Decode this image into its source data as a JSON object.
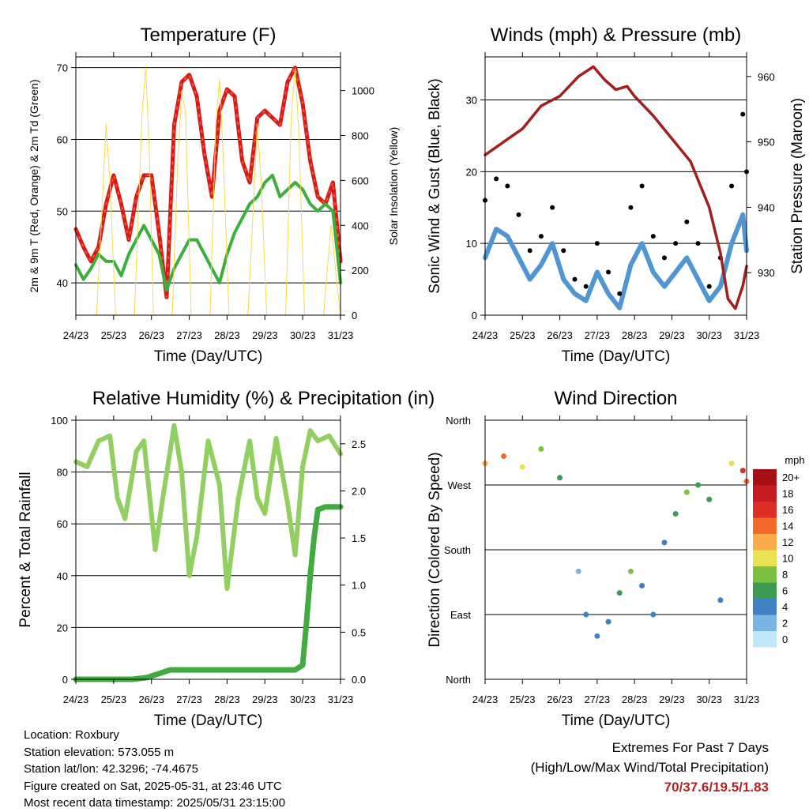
{
  "colors": {
    "temp_2m": "#d7191c",
    "temp_9m": "#f46d23",
    "dewpoint": "#3cae3c",
    "solar": "#fbd84f",
    "wind": "#4f96d2",
    "gust": "#000000",
    "pressure": "#a21f1f",
    "rh": "#91cf60",
    "precip": "#41ab41",
    "extremes": "#b22222"
  },
  "x_ticks": [
    "24/23",
    "25/23",
    "26/23",
    "27/23",
    "28/23",
    "29/23",
    "30/23",
    "31/23"
  ],
  "chart_data": [
    {
      "id": "temperature",
      "type": "line",
      "title": "Temperature (F)",
      "xlabel": "Time (Day/UTC)",
      "ylabel": "2m & 9m T (Red, Orange) & 2m Td (Green)",
      "ylabel_right": "Solar Insolation (Yellow)",
      "ylim": [
        35.5,
        71.5
      ],
      "yticks": [
        40,
        50,
        60,
        70
      ],
      "ylim_right": [
        0,
        1150
      ],
      "yticks_right": [
        0,
        200,
        400,
        600,
        800,
        1000
      ],
      "grid": true,
      "series": [
        {
          "key": "temp",
          "x": [
            0,
            0.2,
            0.4,
            0.6,
            0.8,
            1.0,
            1.2,
            1.4,
            1.6,
            1.8,
            2.0,
            2.2,
            2.4,
            2.6,
            2.8,
            3.0,
            3.2,
            3.4,
            3.6,
            3.8,
            4.0,
            4.2,
            4.4,
            4.6,
            4.8,
            5.0,
            5.2,
            5.4,
            5.6,
            5.8,
            6.0,
            6.2,
            6.4,
            6.6,
            6.8,
            7.0
          ],
          "values": [
            47.5,
            45,
            43,
            45,
            51,
            55,
            51,
            46,
            52,
            55,
            55,
            47,
            38,
            62,
            68,
            69,
            66,
            58,
            52,
            64,
            67,
            66,
            57,
            54,
            63,
            64,
            63,
            62,
            68,
            70,
            65,
            57,
            52,
            51,
            54,
            43
          ]
        },
        {
          "key": "dewpoint",
          "x": [
            0,
            0.2,
            0.4,
            0.6,
            0.8,
            1.0,
            1.2,
            1.4,
            1.6,
            1.8,
            2.0,
            2.2,
            2.4,
            2.6,
            2.8,
            3.0,
            3.2,
            3.4,
            3.6,
            3.8,
            4.0,
            4.2,
            4.4,
            4.6,
            4.8,
            5.0,
            5.2,
            5.4,
            5.6,
            5.8,
            6.0,
            6.2,
            6.4,
            6.6,
            6.8,
            7.0
          ],
          "values": [
            42.5,
            40.5,
            42,
            44,
            43,
            43,
            41,
            44,
            46,
            48,
            46,
            44,
            39,
            42,
            44,
            46,
            46,
            44,
            42,
            40,
            44,
            47,
            49,
            51,
            52,
            54,
            55,
            52,
            53,
            54,
            53,
            51,
            50,
            51,
            50,
            40
          ]
        },
        {
          "key": "solar",
          "x": [
            0,
            0.55,
            0.7,
            0.8,
            0.9,
            1.05,
            1.55,
            1.75,
            1.85,
            1.95,
            2.05,
            2.55,
            2.7,
            2.8,
            2.9,
            3.05,
            3.55,
            3.7,
            3.8,
            3.9,
            4.05,
            4.55,
            4.7,
            4.8,
            4.9,
            5.05,
            5.55,
            5.7,
            5.8,
            5.9,
            6.05,
            6.55,
            6.75,
            6.9,
            7.0
          ],
          "values": [
            0,
            0,
            500,
            850,
            600,
            0,
            0,
            900,
            1100,
            700,
            0,
            0,
            700,
            1000,
            900,
            0,
            0,
            850,
            1050,
            700,
            0,
            0,
            500,
            850,
            600,
            0,
            0,
            900,
            1100,
            800,
            0,
            0,
            400,
            150,
            0
          ]
        }
      ]
    },
    {
      "id": "winds",
      "type": "line",
      "title": "Winds (mph) & Pressure (mb)",
      "xlabel": "Time (Day/UTC)",
      "ylabel": "Sonic Wind & Gust (Blue, Black)",
      "ylabel_right": "Station Pressure (Maroon)",
      "ylim": [
        0,
        36
      ],
      "yticks": [
        0,
        10,
        20,
        30
      ],
      "ylim_right": [
        923.5,
        963
      ],
      "yticks_right": [
        930,
        940,
        950,
        960
      ],
      "grid": true,
      "series": [
        {
          "key": "wind",
          "x": [
            0,
            0.3,
            0.6,
            0.9,
            1.2,
            1.5,
            1.8,
            2.1,
            2.4,
            2.7,
            3.0,
            3.3,
            3.6,
            3.9,
            4.2,
            4.5,
            4.8,
            5.1,
            5.4,
            5.7,
            6.0,
            6.3,
            6.6,
            6.9,
            7.0
          ],
          "values": [
            8,
            12,
            11,
            8,
            5,
            7,
            10,
            5,
            3,
            2,
            6,
            3,
            1,
            7,
            10,
            6,
            4,
            6,
            8,
            5,
            2,
            4,
            10,
            14,
            9
          ]
        },
        {
          "key": "gust",
          "x": [
            0,
            0.3,
            0.6,
            0.9,
            1.2,
            1.5,
            1.8,
            2.1,
            2.4,
            2.7,
            3.0,
            3.3,
            3.6,
            3.9,
            4.2,
            4.5,
            4.8,
            5.1,
            5.4,
            5.7,
            6.0,
            6.3,
            6.6,
            6.9,
            7.0
          ],
          "values": [
            16,
            19,
            18,
            14,
            9,
            11,
            15,
            9,
            5,
            4,
            10,
            6,
            3,
            15,
            18,
            11,
            8,
            10,
            13,
            10,
            4,
            8,
            18,
            28,
            20
          ]
        },
        {
          "key": "pressure",
          "x": [
            0,
            0.5,
            1.0,
            1.5,
            2.0,
            2.5,
            2.9,
            3.2,
            3.5,
            3.8,
            4.0,
            4.5,
            5.0,
            5.5,
            6.0,
            6.3,
            6.5,
            6.7,
            6.9,
            7.0
          ],
          "values": [
            948,
            950,
            952,
            955.5,
            957,
            960,
            961.5,
            959.5,
            958,
            958.5,
            957,
            954,
            950.5,
            947,
            940,
            933,
            926,
            924.5,
            928,
            931
          ]
        }
      ]
    },
    {
      "id": "humidity",
      "type": "line",
      "title": "Relative Humidity (%) & Precipitation (in)",
      "xlabel": "Time (Day/UTC)",
      "ylabel": "Percent & Total Rainfall",
      "ylim": [
        0,
        100
      ],
      "yticks": [
        0,
        20,
        40,
        60,
        80,
        100
      ],
      "ylim_right": [
        0,
        2.75
      ],
      "yticks_right": [
        0.0,
        0.5,
        1.0,
        1.5,
        2.0,
        2.5
      ],
      "grid": true,
      "series": [
        {
          "key": "rh",
          "x": [
            0,
            0.3,
            0.6,
            0.9,
            1.1,
            1.3,
            1.6,
            1.8,
            2.1,
            2.3,
            2.6,
            2.8,
            3.0,
            3.2,
            3.5,
            3.8,
            4.0,
            4.3,
            4.6,
            4.8,
            5.0,
            5.3,
            5.6,
            5.8,
            6.0,
            6.2,
            6.4,
            6.7,
            7.0
          ],
          "values": [
            84,
            82,
            92,
            94,
            70,
            62,
            88,
            92,
            50,
            70,
            98,
            80,
            40,
            55,
            92,
            75,
            35,
            70,
            92,
            70,
            64,
            93,
            68,
            48,
            82,
            96,
            92,
            94,
            87
          ]
        },
        {
          "key": "precip",
          "x": [
            0,
            1.5,
            1.9,
            2.5,
            4.0,
            5.0,
            5.8,
            6.0,
            6.1,
            6.2,
            6.3,
            6.4,
            6.6,
            7.0
          ],
          "values": [
            0,
            0,
            0.02,
            0.1,
            0.1,
            0.1,
            0.1,
            0.15,
            0.6,
            1.1,
            1.5,
            1.8,
            1.83,
            1.83
          ]
        }
      ]
    },
    {
      "id": "direction",
      "type": "scatter",
      "title": "Wind Direction",
      "xlabel": "Time (Day/UTC)",
      "ylabel": "Direction (Colored By Speed)",
      "yticks": [
        "North",
        "East",
        "South",
        "West",
        "North"
      ],
      "ylim": [
        0,
        360
      ],
      "legend_title": "mph",
      "legend_labels": [
        "20+",
        "18",
        "16",
        "14",
        "12",
        "10",
        "8",
        "6",
        "4",
        "2",
        "0"
      ],
      "legend_colors": [
        "#a50f15",
        "#c61d22",
        "#de2d26",
        "#f16a2c",
        "#fbab4a",
        "#e9e252",
        "#7cc142",
        "#3d9a52",
        "#3f81c2",
        "#79b4e3",
        "#c1e6fa"
      ],
      "series": [
        {
          "key": "direction",
          "x": [
            0,
            0.5,
            1.0,
            1.5,
            2.0,
            2.5,
            2.7,
            3.0,
            3.3,
            3.6,
            3.9,
            4.2,
            4.5,
            4.8,
            5.1,
            5.4,
            5.7,
            6.0,
            6.3,
            6.6,
            6.9,
            7.0
          ],
          "values": [
            300,
            310,
            295,
            320,
            280,
            150,
            90,
            60,
            80,
            120,
            150,
            130,
            90,
            190,
            230,
            260,
            270,
            250,
            110,
            300,
            290,
            275
          ],
          "speeds": [
            12,
            14,
            10,
            8,
            6,
            2,
            4,
            3,
            4,
            6,
            8,
            4,
            3,
            4,
            6,
            7,
            6,
            5,
            3,
            10,
            16,
            14
          ]
        }
      ]
    }
  ],
  "footer": {
    "location": "Location: Roxbury",
    "elevation": "Station elevation: 573.055 m",
    "latlon": "Station lat/lon: 42.3296; -74.4675",
    "created": "Figure created on Sat, 2025-05-31, at 23:46 UTC",
    "timestamp": "Most recent data timestamp: 2025/05/31 23:15:00"
  },
  "extremes": {
    "heading": "Extremes For Past 7 Days",
    "subheading": "(High/Low/Max Wind/Total Precipitation)",
    "values": "70/37.6/19.5/1.83"
  }
}
